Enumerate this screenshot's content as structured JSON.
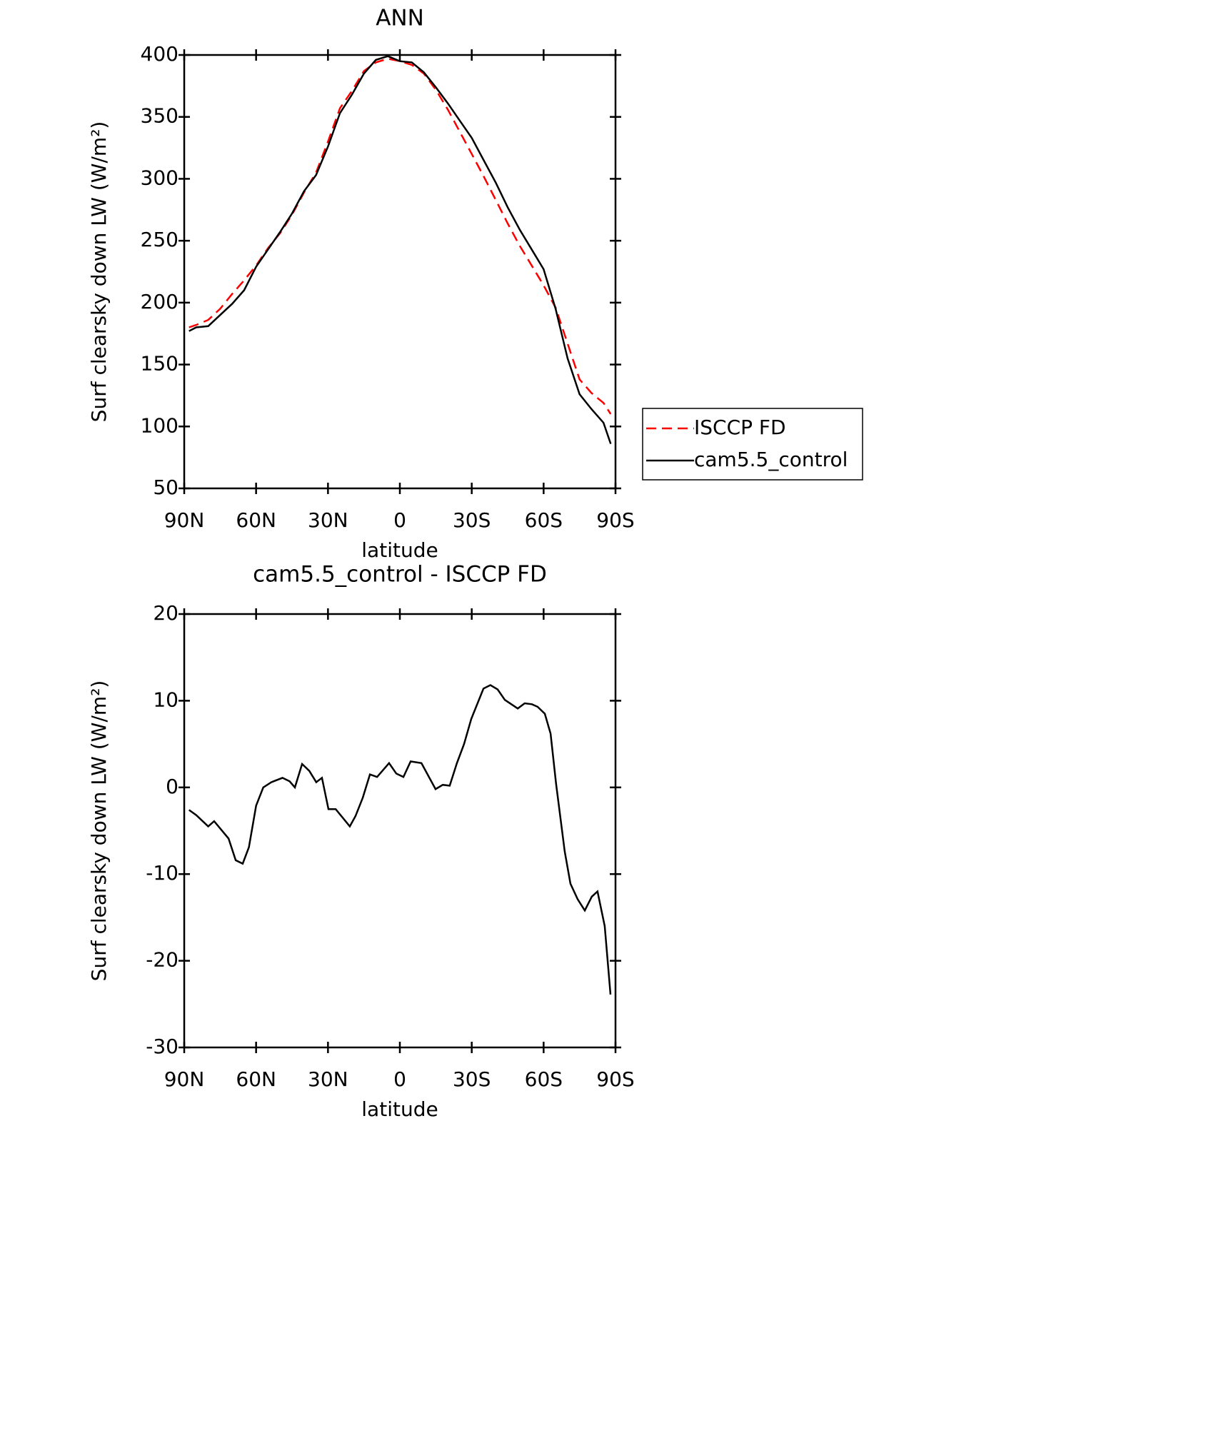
{
  "chart_data": [
    {
      "type": "line",
      "title": "ANN",
      "x_label": "latitude",
      "y_label": "Surf clearsky down LW (W/m²)",
      "x": [
        88,
        85,
        80,
        75,
        70,
        65,
        60,
        55,
        50,
        45,
        40,
        35,
        30,
        25,
        20,
        15,
        10,
        5,
        0,
        -5,
        -10,
        -15,
        -20,
        -25,
        -30,
        -35,
        -40,
        -45,
        -50,
        -55,
        -60,
        -65,
        -70,
        -75,
        -80,
        -85,
        -88
      ],
      "series": [
        {
          "name": "ISCCP FD",
          "color": "#ff0000",
          "dashed": true,
          "values": [
            180,
            182,
            186,
            195,
            207,
            218,
            230,
            244,
            256,
            271,
            289,
            305,
            330,
            357,
            371,
            387,
            394,
            397,
            395,
            392,
            385,
            372,
            356,
            338,
            320,
            302,
            283,
            264,
            246,
            230,
            214,
            196,
            167,
            138,
            127,
            119,
            110
          ]
        },
        {
          "name": "cam5.5_control",
          "color": "#000000",
          "dashed": false,
          "values": [
            177,
            180,
            181,
            190,
            199,
            210,
            229,
            243,
            257,
            272,
            290,
            303,
            326,
            353,
            368,
            385,
            396,
            399,
            395,
            394,
            386,
            374,
            361,
            347,
            333,
            315,
            297,
            277,
            259,
            243,
            227,
            195,
            155,
            126,
            114,
            103,
            86
          ]
        }
      ],
      "xlim": [
        90,
        -90
      ],
      "xticks": [
        {
          "value": 90,
          "label": "90N"
        },
        {
          "value": 60,
          "label": "60N"
        },
        {
          "value": 30,
          "label": "30N"
        },
        0,
        {
          "value": -30,
          "label": "30S"
        },
        {
          "value": -60,
          "label": "60S"
        },
        {
          "value": -90,
          "label": "90S"
        }
      ],
      "ylim": [
        50,
        400
      ],
      "yticks": [
        50,
        100,
        150,
        200,
        250,
        300,
        350,
        400
      ],
      "legend": "right"
    },
    {
      "type": "line",
      "title": "cam5.5_control - ISCCP FD",
      "x_label": "latitude",
      "y_label": "Surf clearsky down LW (W/m²)",
      "x": [
        88,
        85,
        80,
        77.5,
        71.5,
        68.5,
        65.6,
        63,
        60,
        57,
        53.6,
        49,
        46,
        43.8,
        40.8,
        37.8,
        34.9,
        32.5,
        29.8,
        26.8,
        20.9,
        18.5,
        15.5,
        12.5,
        9.5,
        4.5,
        1.5,
        -1.5,
        -4.5,
        -9,
        -14.9,
        -17.9,
        -20.8,
        -23.8,
        -26.8,
        -29.8,
        -34.9,
        -37.8,
        -40.8,
        -43.8,
        -49.2,
        -52.1,
        -55.1,
        -57.5,
        -60.5,
        -62.9,
        -65.2,
        -68.8,
        -71.2,
        -74.2,
        -77.2,
        -80.1,
        -82.5,
        -85.5,
        -87.9
      ],
      "color": "#000000",
      "values": [
        -2.6,
        -3.2,
        -4.5,
        -3.9,
        -5.9,
        -8.4,
        -8.8,
        -6.9,
        -2.1,
        0,
        0.6,
        1.1,
        0.7,
        0,
        2.7,
        1.9,
        0.6,
        1.1,
        -2.5,
        -2.5,
        -4.5,
        -3.3,
        -1.2,
        1.5,
        1.2,
        2.8,
        1.6,
        1.2,
        3,
        2.8,
        -0.2,
        0.3,
        0.2,
        2.8,
        5,
        7.9,
        11.4,
        11.8,
        11.3,
        10.1,
        9.1,
        9.7,
        9.6,
        9.3,
        8.5,
        6.2,
        0.4,
        -7.4,
        -11.1,
        -12.9,
        -14.2,
        -12.6,
        -12,
        -16,
        -23.9
      ],
      "xlim": [
        90,
        -90
      ],
      "xticks": [
        {
          "value": 90,
          "label": "90N"
        },
        {
          "value": 60,
          "label": "60N"
        },
        {
          "value": 30,
          "label": "30N"
        },
        0,
        {
          "value": -30,
          "label": "30S"
        },
        {
          "value": -60,
          "label": "60S"
        },
        {
          "value": -90,
          "label": "90S"
        }
      ],
      "ylim": [
        -30,
        20
      ],
      "yticks": [
        -30,
        -20,
        -10,
        0,
        10,
        20
      ]
    }
  ]
}
